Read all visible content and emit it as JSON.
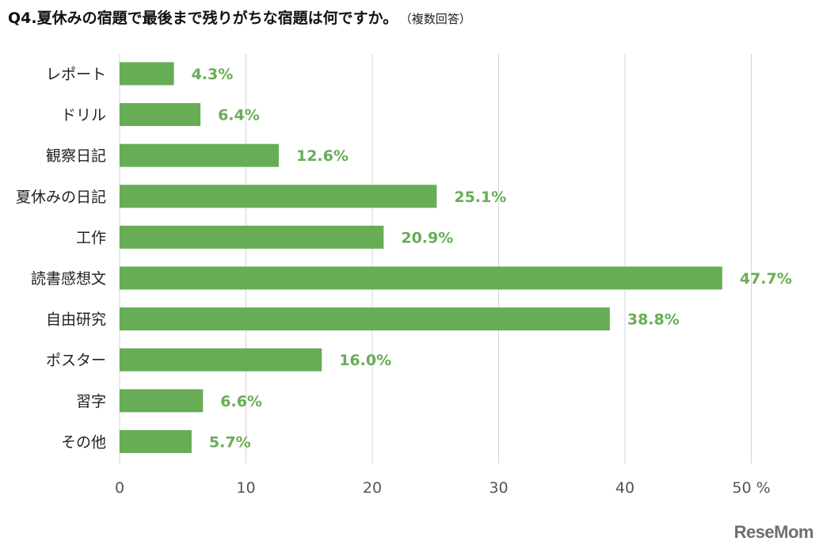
{
  "header": {
    "title": "Q4.夏休みの宿題で最後まで残りがちな宿題は何ですか。",
    "subtitle": "（複数回答）"
  },
  "watermark": "ReseMom",
  "colors": {
    "bar": "#66ad56",
    "label": "#66ad56",
    "grid": "#d4d4d4",
    "axis_text": "#555555",
    "category_text": "#222222"
  },
  "chart_data": {
    "type": "bar",
    "orientation": "horizontal",
    "title": "Q4.夏休みの宿題で最後まで残りがちな宿題は何ですか。（複数回答）",
    "categories": [
      "レポート",
      "ドリル",
      "観察日記",
      "夏休みの日記",
      "工作",
      "読書感想文",
      "自由研究",
      "ポスター",
      "習字",
      "その他"
    ],
    "values": [
      4.3,
      6.4,
      12.6,
      25.1,
      20.9,
      47.7,
      38.8,
      16.0,
      6.6,
      5.7
    ],
    "value_labels": [
      "4.3%",
      "6.4%",
      "12.6%",
      "25.1%",
      "20.9%",
      "47.7%",
      "38.8%",
      "16.0%",
      "6.6%",
      "5.7%"
    ],
    "xlim": [
      0,
      50
    ],
    "xticks": [
      0,
      10,
      20,
      30,
      40,
      50
    ],
    "xtick_labels": [
      "0",
      "10",
      "20",
      "30",
      "40",
      "50 %"
    ],
    "grid": true,
    "xlabel": "",
    "ylabel": ""
  }
}
